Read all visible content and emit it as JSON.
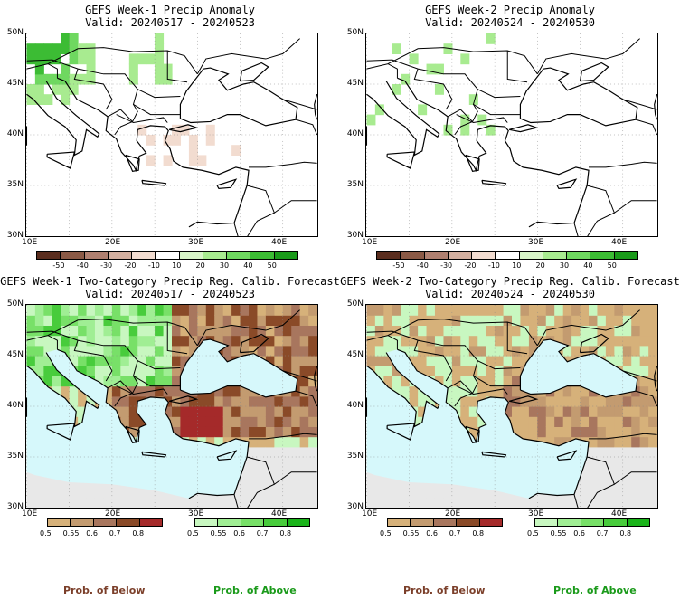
{
  "panels": [
    {
      "title1": "GEFS Week-1 Precip Anomaly",
      "title2": "Valid: 20240517 - 20240523"
    },
    {
      "title1": "GEFS Week-2 Precip Anomaly",
      "title2": "Valid: 20240524 - 20240530"
    },
    {
      "title1": "GEFS Week-1 Two-Category Precip Reg. Calib. Forecast",
      "title2": "Valid: 20240517 - 20240523"
    },
    {
      "title1": "GEFS Week-2 Two-Category Precip Reg. Calib. Forecast",
      "title2": "Valid: 20240524 - 20240530"
    }
  ],
  "lat_labels": [
    "50N",
    "45N",
    "40N",
    "35N",
    "30N"
  ],
  "lon_labels": [
    "10E",
    "20E",
    "30E",
    "40E"
  ],
  "anomaly_colorbar": {
    "labels": [
      "-50",
      "-40",
      "-30",
      "-20",
      "-10",
      "10",
      "20",
      "30",
      "40",
      "50"
    ],
    "colors": [
      "#5a2d1e",
      "#8b5a46",
      "#b08070",
      "#d4b0a0",
      "#f2dcd0",
      "#ffffff",
      "#d8f5c8",
      "#a8eb90",
      "#6fd860",
      "#3cbc34",
      "#1a9a1a"
    ]
  },
  "prob_below_colorbar": {
    "labels": [
      "0.5",
      "0.55",
      "0.6",
      "0.7",
      "0.8"
    ],
    "colors": [
      "#d6b17a",
      "#c39b70",
      "#a8765e",
      "#8a4a28",
      "#a52a2a"
    ]
  },
  "prob_above_colorbar": {
    "labels": [
      "0.5",
      "0.55",
      "0.6",
      "0.7",
      "0.8"
    ],
    "colors": [
      "#c8f7c0",
      "#a0ee94",
      "#78e068",
      "#48cc3c",
      "#1ab41a"
    ]
  },
  "legend": {
    "below_label": "Prob. of Below",
    "above_label": "Prob. of Above",
    "below_color": "#7b3f2a",
    "above_color": "#1a9a1a"
  },
  "map_colors": {
    "sea": "#d6f8fb",
    "land_masked": "#e8e8e8",
    "coast": "#000000",
    "grid": "#888888"
  }
}
